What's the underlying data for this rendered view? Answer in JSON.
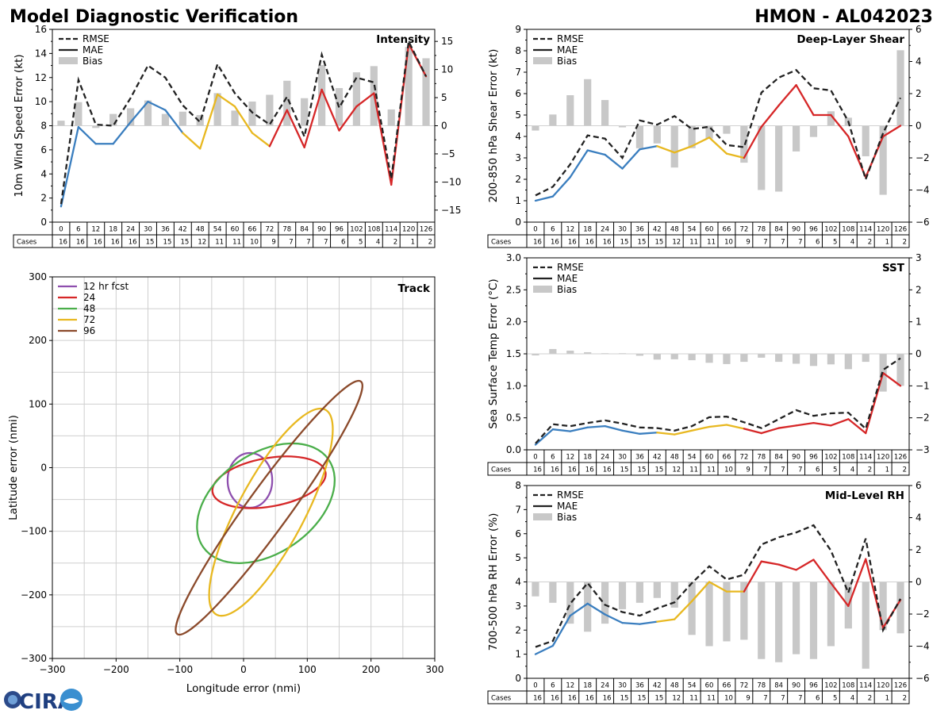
{
  "header": {
    "title": "Model Diagnostic Verification",
    "storm": "HMON - AL042023"
  },
  "logo": {
    "text": "CIRA"
  },
  "cases_label": "Cases",
  "colors": {
    "rmse": "#222222",
    "blue": "#3a7ebf",
    "gold": "#e8b820",
    "red": "#d62728",
    "bar": "#c8c8c8"
  },
  "legend": {
    "rmse": "RMSE",
    "mae": "MAE",
    "bias": "Bias"
  },
  "chart_data": [
    {
      "type": "line+bar",
      "id": "intensity",
      "title": "Intensity",
      "ylabel": "10m Wind Speed Error (kt)",
      "ylim": [
        0,
        16
      ],
      "yticks": [
        0,
        2,
        4,
        6,
        8,
        10,
        12,
        14,
        16
      ],
      "y2lim": [
        -17.14,
        17.14
      ],
      "y2ticks": [
        -15,
        -10,
        -5,
        0,
        5,
        10,
        15
      ],
      "x": [
        0,
        6,
        12,
        18,
        24,
        30,
        36,
        42,
        48,
        54,
        60,
        66,
        72,
        78,
        84,
        90,
        96,
        102,
        108,
        114,
        120,
        126
      ],
      "cases": [
        16,
        16,
        16,
        16,
        16,
        15,
        15,
        15,
        12,
        11,
        11,
        10,
        9,
        7,
        7,
        7,
        6,
        5,
        4,
        2,
        1,
        2
      ],
      "rmse": [
        1.5,
        11.8,
        8.1,
        8.0,
        10.3,
        13.0,
        12.0,
        9.7,
        8.3,
        13.1,
        10.7,
        9.1,
        8.1,
        10.4,
        7.1,
        13.9,
        9.5,
        12.0,
        11.6,
        3.6,
        15.0,
        12.1
      ],
      "mae": [
        1.3,
        7.9,
        6.5,
        6.5,
        8.3,
        10.0,
        9.3,
        7.4,
        6.1,
        10.6,
        9.6,
        7.4,
        6.3,
        9.3,
        6.2,
        11.0,
        7.6,
        9.6,
        10.7,
        3.1,
        14.8,
        12.1
      ],
      "bias": [
        0.9,
        4.2,
        -0.4,
        2.1,
        3.1,
        4.5,
        2.1,
        2.5,
        1.9,
        5.8,
        2.7,
        4.3,
        5.5,
        8.0,
        4.9,
        10.8,
        6.7,
        9.5,
        10.6,
        2.9,
        14.0,
        12.0
      ]
    },
    {
      "type": "line+bar",
      "id": "shear",
      "title": "Deep-Layer Shear",
      "ylabel": "200-850 hPa Shear Error (kt)",
      "ylim": [
        0,
        9
      ],
      "yticks": [
        0,
        1,
        2,
        3,
        4,
        5,
        6,
        7,
        8,
        9
      ],
      "y2lim": [
        -6,
        6
      ],
      "y2ticks": [
        -6,
        -4,
        -2,
        0,
        2,
        4,
        6
      ],
      "x": [
        0,
        6,
        12,
        18,
        24,
        30,
        36,
        42,
        48,
        54,
        60,
        66,
        72,
        78,
        84,
        90,
        96,
        102,
        108,
        114,
        120,
        126
      ],
      "cases": [
        16,
        16,
        16,
        16,
        16,
        15,
        15,
        15,
        12,
        11,
        11,
        10,
        9,
        7,
        7,
        7,
        6,
        5,
        4,
        2,
        1,
        2
      ],
      "rmse": [
        1.25,
        1.65,
        2.7,
        4.05,
        3.9,
        3.0,
        4.75,
        4.55,
        4.95,
        4.35,
        4.45,
        3.6,
        3.5,
        6.05,
        6.75,
        7.1,
        6.25,
        6.15,
        4.7,
        2.0,
        4.15,
        5.8
      ],
      "mae": [
        1.0,
        1.2,
        2.1,
        3.35,
        3.15,
        2.5,
        3.4,
        3.55,
        3.25,
        3.55,
        3.95,
        3.2,
        3.0,
        4.45,
        5.45,
        6.4,
        5.0,
        5.0,
        4.0,
        2.1,
        4.0,
        4.5
      ],
      "bias": [
        -0.3,
        0.7,
        1.9,
        2.9,
        1.6,
        -0.1,
        -1.4,
        -1.1,
        -2.6,
        -1.4,
        -0.8,
        -0.5,
        -2.3,
        -4.0,
        -4.1,
        -1.6,
        -0.7,
        0.9,
        0.5,
        -1.9,
        -4.3,
        4.7
      ]
    },
    {
      "type": "line+bar",
      "id": "sst",
      "title": "SST",
      "ylabel": "Sea Surface Temp Error (°C)",
      "ylim": [
        0,
        3
      ],
      "yticks": [
        0.0,
        0.5,
        1.0,
        1.5,
        2.0,
        2.5,
        3.0
      ],
      "y2lim": [
        -3,
        3
      ],
      "y2ticks": [
        -3,
        -2,
        -1,
        0,
        1,
        2,
        3
      ],
      "x": [
        0,
        6,
        12,
        18,
        24,
        30,
        36,
        42,
        48,
        54,
        60,
        66,
        72,
        78,
        84,
        90,
        96,
        102,
        108,
        114,
        120,
        126
      ],
      "cases": [
        16,
        16,
        16,
        16,
        16,
        15,
        15,
        15,
        12,
        11,
        11,
        10,
        9,
        7,
        7,
        7,
        6,
        5,
        4,
        2,
        1,
        2
      ],
      "rmse": [
        0.1,
        0.4,
        0.37,
        0.42,
        0.46,
        0.41,
        0.35,
        0.34,
        0.3,
        0.37,
        0.51,
        0.52,
        0.43,
        0.34,
        0.48,
        0.62,
        0.53,
        0.57,
        0.58,
        0.33,
        1.25,
        1.43
      ],
      "mae": [
        0.08,
        0.32,
        0.29,
        0.35,
        0.37,
        0.3,
        0.25,
        0.27,
        0.24,
        0.3,
        0.36,
        0.39,
        0.33,
        0.26,
        0.34,
        0.38,
        0.42,
        0.38,
        0.48,
        0.26,
        1.2,
        1.0
      ],
      "bias": [
        -0.05,
        0.15,
        0.1,
        0.05,
        0.02,
        0.02,
        -0.06,
        -0.18,
        -0.17,
        -0.2,
        -0.28,
        -0.32,
        -0.25,
        -0.12,
        -0.25,
        -0.31,
        -0.38,
        -0.33,
        -0.48,
        -0.25,
        -1.18,
        -1.0
      ]
    },
    {
      "type": "line+bar",
      "id": "rh",
      "title": "Mid-Level RH",
      "ylabel": "700-500 hPa RH Error (%)",
      "ylim": [
        0,
        8
      ],
      "yticks": [
        0,
        1,
        2,
        3,
        4,
        5,
        6,
        7,
        8
      ],
      "y2lim": [
        -6,
        6
      ],
      "y2ticks": [
        -6,
        -4,
        -2,
        0,
        2,
        4,
        6
      ],
      "x": [
        0,
        6,
        12,
        18,
        24,
        30,
        36,
        42,
        48,
        54,
        60,
        66,
        72,
        78,
        84,
        90,
        96,
        102,
        108,
        114,
        120,
        126
      ],
      "cases": [
        16,
        16,
        16,
        16,
        16,
        15,
        15,
        15,
        12,
        11,
        11,
        10,
        9,
        7,
        7,
        7,
        6,
        5,
        4,
        2,
        1,
        2
      ],
      "rmse": [
        1.3,
        1.55,
        3.1,
        3.95,
        3.05,
        2.75,
        2.6,
        2.9,
        3.15,
        3.95,
        4.65,
        4.1,
        4.3,
        5.55,
        5.85,
        6.05,
        6.35,
        5.3,
        3.55,
        5.8,
        2.0,
        3.3
      ],
      "mae": [
        1.0,
        1.35,
        2.6,
        3.1,
        2.65,
        2.3,
        2.25,
        2.35,
        2.45,
        3.2,
        4.0,
        3.6,
        3.6,
        4.85,
        4.72,
        4.5,
        4.92,
        3.95,
        3.0,
        4.95,
        2.1,
        3.25
      ],
      "bias": [
        -0.9,
        -1.3,
        -2.6,
        -3.1,
        -2.6,
        -1.7,
        -1.3,
        -1.0,
        -1.6,
        -3.3,
        -4.0,
        -3.7,
        -3.6,
        -4.8,
        -5.0,
        -4.5,
        -4.8,
        -4.0,
        -2.9,
        -5.4,
        -3.0,
        -3.2
      ]
    },
    {
      "type": "ellipse",
      "id": "track",
      "title": "Track",
      "xlabel": "Longitude error (nmi)",
      "ylabel": "Latitude error (nmi)",
      "xlim": [
        -300,
        300
      ],
      "ylim": [
        -300,
        300
      ],
      "ticks": [
        -300,
        -200,
        -100,
        0,
        100,
        200,
        300
      ],
      "series": [
        {
          "name": "12 hr fcst",
          "color": "#8e4fae",
          "cx": 10,
          "cy": -20,
          "rx": 35,
          "ry": 43,
          "angle": 0
        },
        {
          "name": "24",
          "color": "#d62728",
          "cx": 40,
          "cy": -23,
          "rx": 90,
          "ry": 38,
          "angle": 10
        },
        {
          "name": "48",
          "color": "#4aae4a",
          "cx": 35,
          "cy": -56,
          "rx": 120,
          "ry": 78,
          "angle": 35
        },
        {
          "name": "72",
          "color": "#e8b820",
          "cx": 43,
          "cy": -70,
          "rx": 182,
          "ry": 52,
          "angle": 62
        },
        {
          "name": "96",
          "color": "#8b4a2b",
          "cx": 40,
          "cy": -63,
          "rx": 245,
          "ry": 33,
          "angle": 54
        }
      ]
    }
  ]
}
